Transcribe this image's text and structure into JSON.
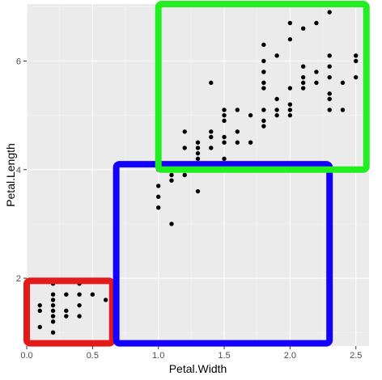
{
  "chart_data": {
    "type": "scatter",
    "title": "",
    "xlabel": "Petal.Width",
    "ylabel": "Petal.Length",
    "xlim": [
      0.0,
      2.6
    ],
    "ylim": [
      0.75,
      7.05
    ],
    "grid": true,
    "legend": "none",
    "x_ticks": [
      {
        "value": 0.0,
        "label": "0.0"
      },
      {
        "value": 0.5,
        "label": "0.5"
      },
      {
        "value": 1.0,
        "label": "1.0"
      },
      {
        "value": 1.5,
        "label": "1.5"
      },
      {
        "value": 2.0,
        "label": "2.0"
      },
      {
        "value": 2.5,
        "label": "2.5"
      }
    ],
    "y_ticks": [
      {
        "value": 2,
        "label": "2"
      },
      {
        "value": 4,
        "label": "4"
      },
      {
        "value": 6,
        "label": "6"
      }
    ],
    "colors": {
      "panel": "#ebebeb",
      "grid_major": "#ffffff",
      "points": "#000000",
      "box_red": "#e41a1a",
      "box_blue": "#1400ff",
      "box_green": "#22ee22"
    },
    "points": [
      {
        "x": 0.1,
        "y": 1.1
      },
      {
        "x": 0.1,
        "y": 1.4
      },
      {
        "x": 0.1,
        "y": 1.5
      },
      {
        "x": 0.2,
        "y": 1.0
      },
      {
        "x": 0.2,
        "y": 1.2
      },
      {
        "x": 0.2,
        "y": 1.3
      },
      {
        "x": 0.2,
        "y": 1.4
      },
      {
        "x": 0.2,
        "y": 1.5
      },
      {
        "x": 0.2,
        "y": 1.6
      },
      {
        "x": 0.2,
        "y": 1.7
      },
      {
        "x": 0.2,
        "y": 1.9
      },
      {
        "x": 0.3,
        "y": 1.3
      },
      {
        "x": 0.3,
        "y": 1.4
      },
      {
        "x": 0.3,
        "y": 1.7
      },
      {
        "x": 0.4,
        "y": 1.3
      },
      {
        "x": 0.4,
        "y": 1.5
      },
      {
        "x": 0.4,
        "y": 1.7
      },
      {
        "x": 0.4,
        "y": 1.9
      },
      {
        "x": 0.5,
        "y": 1.7
      },
      {
        "x": 0.6,
        "y": 1.6
      },
      {
        "x": 1.0,
        "y": 3.3
      },
      {
        "x": 1.0,
        "y": 3.5
      },
      {
        "x": 1.0,
        "y": 3.7
      },
      {
        "x": 1.0,
        "y": 4.0
      },
      {
        "x": 1.0,
        "y": 4.1
      },
      {
        "x": 1.1,
        "y": 3.0
      },
      {
        "x": 1.1,
        "y": 3.8
      },
      {
        "x": 1.1,
        "y": 3.9
      },
      {
        "x": 1.2,
        "y": 3.9
      },
      {
        "x": 1.2,
        "y": 4.0
      },
      {
        "x": 1.2,
        "y": 4.4
      },
      {
        "x": 1.2,
        "y": 4.7
      },
      {
        "x": 1.3,
        "y": 3.6
      },
      {
        "x": 1.3,
        "y": 4.0
      },
      {
        "x": 1.3,
        "y": 4.1
      },
      {
        "x": 1.3,
        "y": 4.2
      },
      {
        "x": 1.3,
        "y": 4.3
      },
      {
        "x": 1.3,
        "y": 4.4
      },
      {
        "x": 1.3,
        "y": 4.5
      },
      {
        "x": 1.4,
        "y": 4.4
      },
      {
        "x": 1.4,
        "y": 4.6
      },
      {
        "x": 1.4,
        "y": 4.7
      },
      {
        "x": 1.4,
        "y": 5.6
      },
      {
        "x": 1.5,
        "y": 4.2
      },
      {
        "x": 1.5,
        "y": 4.5
      },
      {
        "x": 1.5,
        "y": 4.6
      },
      {
        "x": 1.5,
        "y": 4.9
      },
      {
        "x": 1.5,
        "y": 5.0
      },
      {
        "x": 1.5,
        "y": 5.1
      },
      {
        "x": 1.6,
        "y": 4.5
      },
      {
        "x": 1.6,
        "y": 4.7
      },
      {
        "x": 1.6,
        "y": 5.1
      },
      {
        "x": 1.7,
        "y": 4.5
      },
      {
        "x": 1.7,
        "y": 5.0
      },
      {
        "x": 1.8,
        "y": 4.8
      },
      {
        "x": 1.8,
        "y": 4.9
      },
      {
        "x": 1.8,
        "y": 5.1
      },
      {
        "x": 1.8,
        "y": 5.5
      },
      {
        "x": 1.8,
        "y": 5.6
      },
      {
        "x": 1.8,
        "y": 5.8
      },
      {
        "x": 1.8,
        "y": 6.0
      },
      {
        "x": 1.8,
        "y": 6.3
      },
      {
        "x": 1.9,
        "y": 5.0
      },
      {
        "x": 1.9,
        "y": 5.1
      },
      {
        "x": 1.9,
        "y": 5.3
      },
      {
        "x": 1.9,
        "y": 6.1
      },
      {
        "x": 2.0,
        "y": 5.0
      },
      {
        "x": 2.0,
        "y": 5.1
      },
      {
        "x": 2.0,
        "y": 5.2
      },
      {
        "x": 2.0,
        "y": 5.5
      },
      {
        "x": 2.0,
        "y": 6.4
      },
      {
        "x": 2.0,
        "y": 6.7
      },
      {
        "x": 2.1,
        "y": 5.5
      },
      {
        "x": 2.1,
        "y": 5.6
      },
      {
        "x": 2.1,
        "y": 5.7
      },
      {
        "x": 2.1,
        "y": 5.9
      },
      {
        "x": 2.1,
        "y": 6.6
      },
      {
        "x": 2.2,
        "y": 5.6
      },
      {
        "x": 2.2,
        "y": 5.8
      },
      {
        "x": 2.2,
        "y": 6.7
      },
      {
        "x": 2.3,
        "y": 5.1
      },
      {
        "x": 2.3,
        "y": 5.3
      },
      {
        "x": 2.3,
        "y": 5.4
      },
      {
        "x": 2.3,
        "y": 5.7
      },
      {
        "x": 2.3,
        "y": 5.9
      },
      {
        "x": 2.3,
        "y": 6.1
      },
      {
        "x": 2.3,
        "y": 6.9
      },
      {
        "x": 2.4,
        "y": 5.1
      },
      {
        "x": 2.4,
        "y": 5.6
      },
      {
        "x": 2.5,
        "y": 5.7
      },
      {
        "x": 2.5,
        "y": 6.0
      },
      {
        "x": 2.5,
        "y": 6.1
      }
    ],
    "annotations": [
      {
        "name": "red-box",
        "color": "#e41a1a",
        "x_range": [
          0.0,
          0.65
        ],
        "y_range": [
          0.8,
          1.95
        ]
      },
      {
        "name": "blue-box",
        "color": "#1400ff",
        "x_range": [
          0.68,
          2.3
        ],
        "y_range": [
          0.8,
          4.1
        ]
      },
      {
        "name": "green-box",
        "color": "#22ee22",
        "x_range": [
          1.0,
          2.58
        ],
        "y_range": [
          4.0,
          7.05
        ]
      }
    ]
  }
}
